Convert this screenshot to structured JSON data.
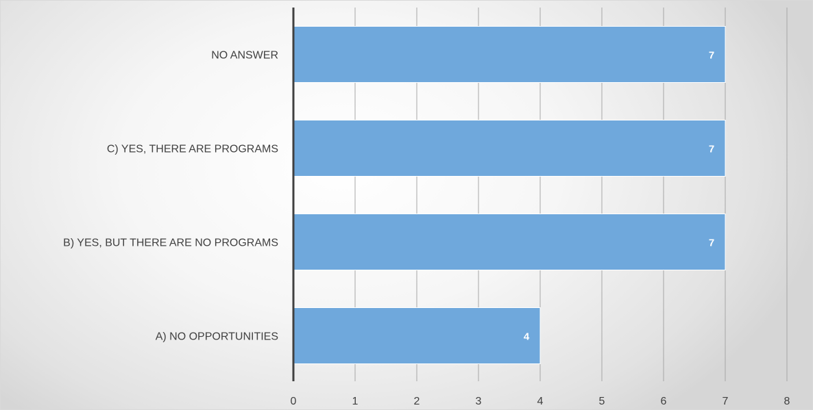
{
  "chart_data": {
    "type": "bar",
    "orientation": "horizontal",
    "categories": [
      "A) NO OPPORTUNITIES",
      "B) YES, BUT THERE ARE NO PROGRAMS",
      "C) YES, THERE ARE PROGRAMS",
      "NO ANSWER"
    ],
    "values": [
      4,
      7,
      7,
      7
    ],
    "data_labels": [
      "4",
      "7",
      "7",
      "7"
    ],
    "xlim": [
      0,
      8
    ],
    "xticks": [
      0,
      1,
      2,
      3,
      4,
      5,
      6,
      7,
      8
    ],
    "grid": "vertical",
    "legend": "none",
    "title": "",
    "xlabel": "",
    "ylabel": "",
    "bar_color": "#6fa8dc",
    "bar_edge_color": "#ffffff",
    "axis_color": "#404040",
    "grid_color": "#a6a6a6",
    "label_color": "#404040",
    "data_label_color": "#ffffff"
  }
}
